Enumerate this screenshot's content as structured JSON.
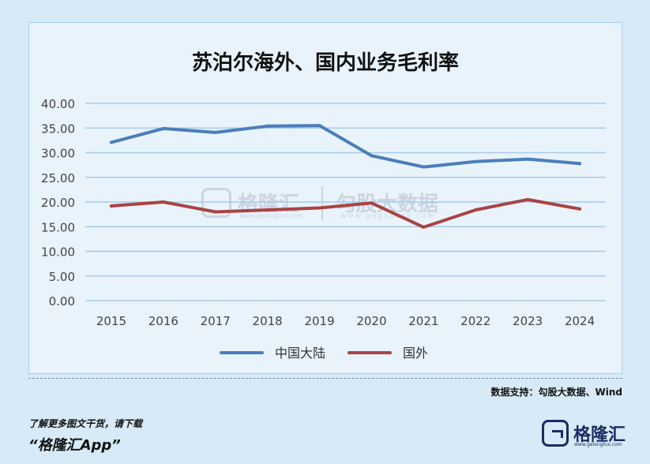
{
  "footer": {
    "source": "数据支持：勾股大数据、Wind",
    "promo_line1": "了解更多图文干货，请下载",
    "promo_line2": "“格隆汇App”",
    "logo_text": "格隆汇",
    "logo_url": "www.gelonghui.com"
  },
  "watermark": {
    "brand1": "格隆汇",
    "url1": "www.gelonghui.com",
    "brand2": "勾股大数据",
    "url2": "www.gogudata.com"
  },
  "colors": {
    "mainland": "#4a7ebb",
    "overseas": "#a84444",
    "grid": "#a7cbe8"
  },
  "chart_data": {
    "type": "line",
    "title": "苏泊尔海外、国内业务毛利率",
    "categories": [
      "2015",
      "2016",
      "2017",
      "2018",
      "2019",
      "2020",
      "2021",
      "2022",
      "2023",
      "2024"
    ],
    "ylim": [
      0,
      40
    ],
    "yticks": [
      "0.00",
      "5.00",
      "10.00",
      "15.00",
      "20.00",
      "25.00",
      "30.00",
      "35.00",
      "40.00"
    ],
    "grid": true,
    "legend": "bottom",
    "series": [
      {
        "name": "中国大陆",
        "values": [
          32.1,
          34.9,
          34.1,
          35.4,
          35.5,
          29.4,
          27.1,
          28.2,
          28.7,
          27.8
        ]
      },
      {
        "name": "国外",
        "values": [
          19.2,
          20.0,
          18.0,
          18.4,
          18.8,
          19.8,
          14.9,
          18.4,
          20.5,
          18.6
        ]
      }
    ]
  }
}
